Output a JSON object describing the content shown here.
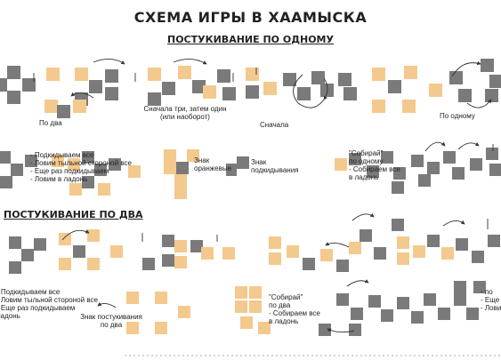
{
  "title": "СХЕМА ИГРЫ В ХААМЫСКА",
  "section1": {
    "title": "ПОСТУКИВАНИЕ ПО ОДНОМУ"
  },
  "section2": {
    "title": "ПОСТУКИВАНИЕ ПО ДВА"
  },
  "captions": {
    "po_dva": "По два",
    "snachala_tri": "Сначала три, затем один",
    "ili_naoborot": "(или наоборот)",
    "snachala": "Сначала",
    "po_odnomu": "По одному",
    "podkidyvaem_1": "- Подкидываем все",
    "podkidyvaem_2": "- Ловим тыльной стороной все",
    "podkidyvaem_3": "- Еще раз подкидываем",
    "podkidyvaem_4": "- Ловим в ладонь",
    "znak_oranzhevyi_1": "Знак",
    "znak_oranzhevyi_2": "оранжевые",
    "znak_podkidyvaniya_1": "Знак",
    "znak_podkidyvaniya_2": "подкидывания",
    "sobirai_1": "\"Собирай\"",
    "sobirai_2": "по одному",
    "sobirai_3": "- Собираем все",
    "sobirai_4": "в ладонь",
    "s2_podkid_1": "- Подкидываем все",
    "s2_podkid_2": "- Ловим тыльной стороной все",
    "s2_podkid_3": "- Еще раз подкидываем",
    "s2_podkid_4": "ладонь",
    "znak_postukivaniya_1": "Знак постукивания",
    "znak_postukivaniya_2": "по два",
    "s2_sobirai_1": "\"Собирай\"",
    "s2_sobirai_2": "по два",
    "s2_sobirai_3": "- Собираем все",
    "s2_sobirai_4": "в ладонь",
    "right_cut_1": "- по",
    "right_cut_2": "- Еще",
    "right_cut_3": "- Ловим"
  },
  "colors": {
    "gray_die": "#7a7a7a",
    "orange_die": "#f4c98e",
    "arrow": "#333333"
  }
}
